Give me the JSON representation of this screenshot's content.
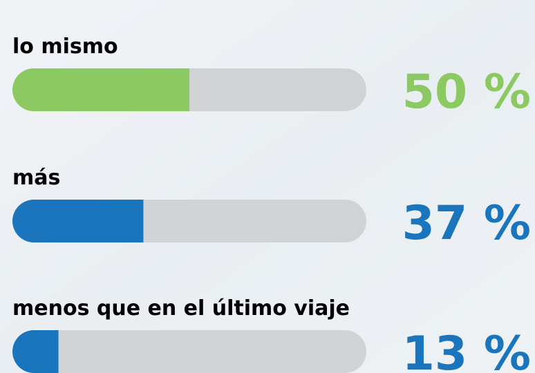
{
  "chart_data": {
    "type": "bar",
    "orientation": "horizontal",
    "categories": [
      "lo mismo",
      "más",
      "menos que en el último viaje"
    ],
    "values": [
      50,
      37,
      13
    ],
    "value_labels": [
      "50 %",
      "37 %",
      "13 %"
    ],
    "colors": [
      "#8cc963",
      "#1a75bc",
      "#1a75bc"
    ],
    "xlim": [
      0,
      100
    ]
  }
}
